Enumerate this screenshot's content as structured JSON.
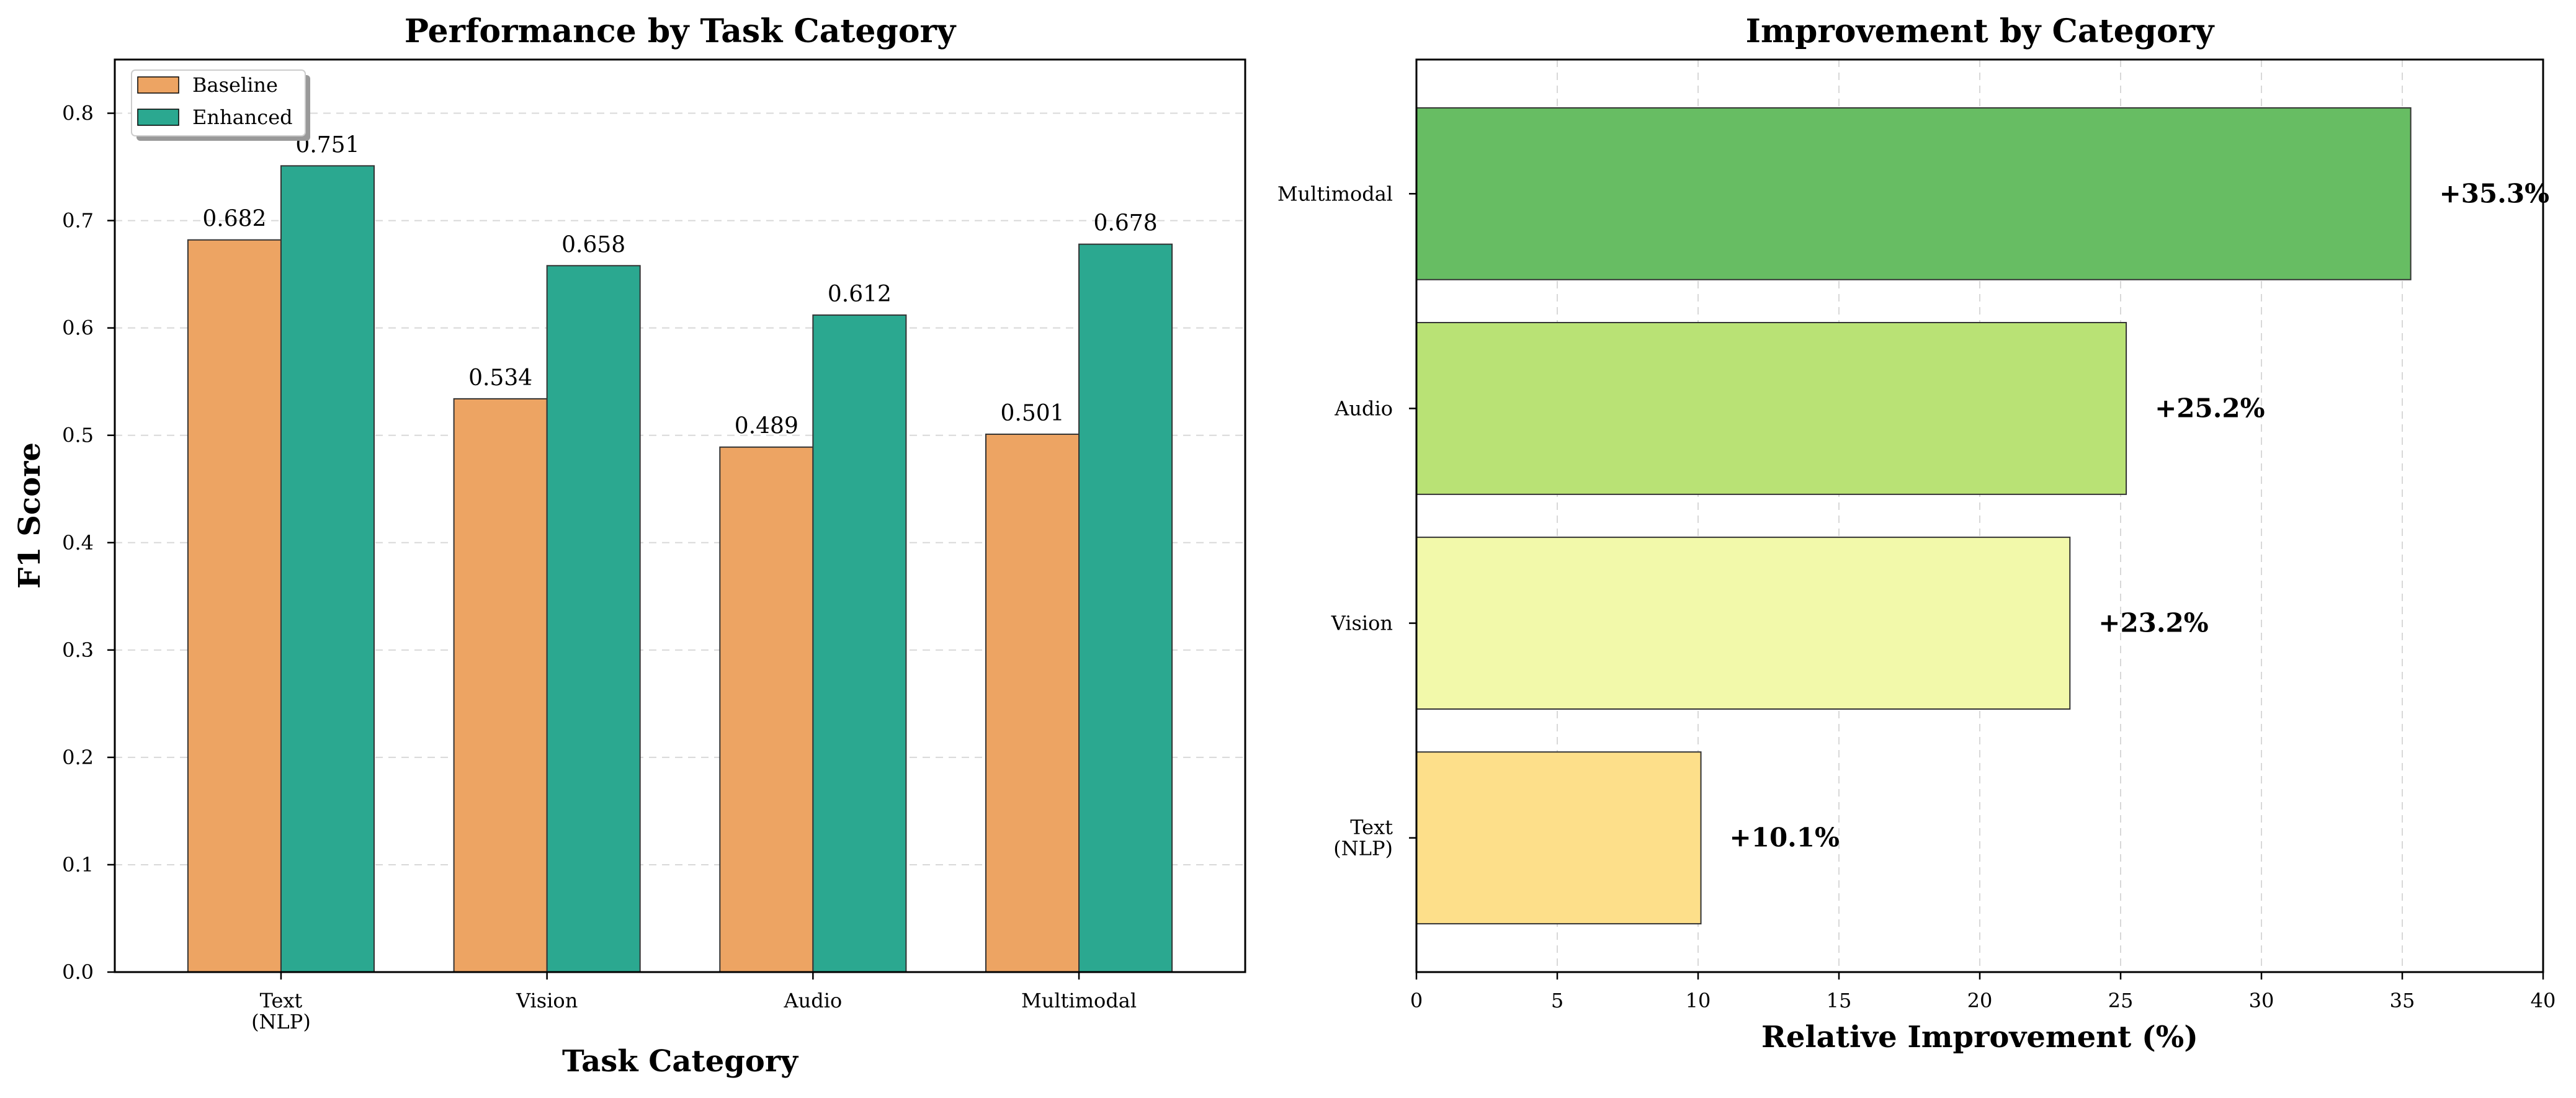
{
  "chart_data": [
    {
      "type": "bar",
      "title": "Performance by Task Category",
      "xlabel": "Task Category",
      "ylabel": "F1 Score",
      "categories": [
        "Text\n(NLP)",
        "Vision",
        "Audio",
        "Multimodal"
      ],
      "series": [
        {
          "name": "Baseline",
          "values": [
            0.682,
            0.534,
            0.489,
            0.501
          ],
          "color": "#eda463"
        },
        {
          "name": "Enhanced",
          "values": [
            0.751,
            0.658,
            0.612,
            0.678
          ],
          "color": "#2ba890"
        }
      ],
      "data_labels": [
        "0.682",
        "0.534",
        "0.489",
        "0.501",
        "0.751",
        "0.658",
        "0.612",
        "0.678"
      ],
      "ylim": [
        0,
        0.85
      ],
      "yticks": [
        "0.0",
        "0.1",
        "0.2",
        "0.3",
        "0.4",
        "0.5",
        "0.6",
        "0.7",
        "0.8"
      ],
      "grid": true,
      "legend": "top-left"
    },
    {
      "type": "bar",
      "orientation": "horizontal",
      "title": "Improvement by Category",
      "xlabel": "Relative Improvement (%)",
      "ylabel": "",
      "categories": [
        "Text\n(NLP)",
        "Vision",
        "Audio",
        "Multimodal"
      ],
      "values": [
        10.1,
        23.2,
        25.2,
        35.3
      ],
      "value_labels": [
        "+10.1%",
        "+23.2%",
        "+25.2%",
        "+35.3%"
      ],
      "colors": [
        "#fddf8a",
        "#f2f9aa",
        "#b9e275",
        "#67bd63"
      ],
      "xlim": [
        0,
        40
      ],
      "xticks": [
        "0",
        "5",
        "10",
        "15",
        "20",
        "25",
        "30",
        "35",
        "40"
      ],
      "grid": true
    }
  ]
}
